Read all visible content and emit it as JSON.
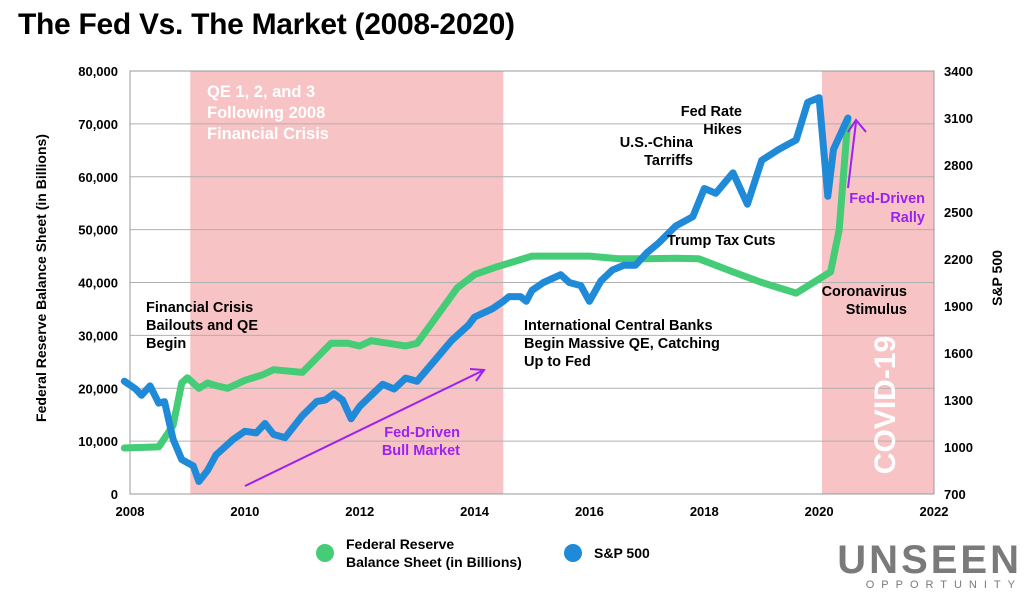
{
  "title": "The Fed Vs. The Market (2008-2020)",
  "colors": {
    "fed_line": "#44cc77",
    "sp_line": "#1f8ad8",
    "shade": "#f7c3c4",
    "arrow": "#9b22f0",
    "qe_text": "#ffffff",
    "grid": "#b0b0b0"
  },
  "chart_data": {
    "type": "line",
    "title": "The Fed Vs. The Market (2008-2020)",
    "xlim": [
      2008,
      2022
    ],
    "x_ticks": [
      "2008",
      "2010",
      "2012",
      "2014",
      "2016",
      "2018",
      "2020",
      "2022"
    ],
    "y_left": {
      "label": "Federal Reserve Balance Sheet (in Billions)",
      "range": [
        0,
        80000
      ],
      "ticks": [
        "0",
        "10,000",
        "20,000",
        "30,000",
        "40,000",
        "50,000",
        "60,000",
        "70,000",
        "80,000"
      ]
    },
    "y_right": {
      "label": "S&P 500",
      "range": [
        700,
        3400
      ],
      "ticks": [
        "700",
        "1000",
        "1300",
        "1600",
        "1900",
        "2200",
        "2500",
        "2800",
        "3100",
        "3400"
      ]
    },
    "grid": true,
    "legend_position": "bottom",
    "shaded_regions": [
      {
        "x0": 2009.05,
        "x1": 2014.5,
        "label": "QE 1, 2, and 3 Following 2008 Financial Crisis"
      },
      {
        "x0": 2020.05,
        "x1": 2022.0,
        "label": "COVID-19"
      }
    ],
    "series": [
      {
        "name": "Federal Reserve Balance Sheet (in Billions)",
        "axis": "left",
        "x": [
          2007.9,
          2008.5,
          2008.75,
          2008.9,
          2009.0,
          2009.2,
          2009.35,
          2009.5,
          2009.7,
          2010.0,
          2010.3,
          2010.5,
          2011.0,
          2011.5,
          2011.8,
          2012.0,
          2012.2,
          2012.5,
          2012.8,
          2013.0,
          2013.3,
          2013.7,
          2014.0,
          2014.4,
          2015.0,
          2015.5,
          2016.0,
          2016.5,
          2017.0,
          2017.5,
          2017.9,
          2018.5,
          2019.0,
          2019.6,
          2019.9,
          2020.2,
          2020.35,
          2020.5
        ],
        "values": [
          8700,
          8900,
          13000,
          21000,
          22000,
          20000,
          21000,
          20500,
          20000,
          21500,
          22500,
          23500,
          23000,
          28500,
          28500,
          28000,
          29000,
          28500,
          28000,
          28500,
          33000,
          39000,
          41500,
          43000,
          45000,
          45000,
          45000,
          44500,
          44500,
          44600,
          44500,
          42000,
          40000,
          38000,
          40000,
          42000,
          50000,
          71000
        ]
      },
      {
        "name": "S&P 500",
        "axis": "right",
        "x": [
          2007.9,
          2008.1,
          2008.2,
          2008.35,
          2008.5,
          2008.6,
          2008.75,
          2008.9,
          2009.0,
          2009.1,
          2009.2,
          2009.35,
          2009.5,
          2009.65,
          2009.8,
          2010.0,
          2010.2,
          2010.35,
          2010.5,
          2010.7,
          2011.0,
          2011.25,
          2011.4,
          2011.55,
          2011.7,
          2011.85,
          2012.0,
          2012.2,
          2012.4,
          2012.6,
          2012.8,
          2013.0,
          2013.3,
          2013.6,
          2013.9,
          2014.0,
          2014.3,
          2014.5,
          2014.6,
          2014.8,
          2014.9,
          2015.0,
          2015.2,
          2015.5,
          2015.65,
          2015.85,
          2016.0,
          2016.2,
          2016.4,
          2016.6,
          2016.8,
          2017.0,
          2017.2,
          2017.5,
          2017.8,
          2018.0,
          2018.2,
          2018.5,
          2018.75,
          2019.0,
          2019.3,
          2019.5,
          2019.6,
          2019.8,
          2020.0,
          2020.15,
          2020.25,
          2020.5
        ],
        "values": [
          1420,
          1370,
          1330,
          1390,
          1280,
          1290,
          1050,
          920,
          900,
          880,
          780,
          850,
          950,
          1000,
          1050,
          1100,
          1090,
          1150,
          1080,
          1060,
          1200,
          1290,
          1300,
          1340,
          1300,
          1180,
          1260,
          1330,
          1400,
          1370,
          1440,
          1420,
          1550,
          1680,
          1780,
          1830,
          1880,
          1930,
          1960,
          1960,
          1930,
          2000,
          2050,
          2100,
          2050,
          2030,
          1930,
          2060,
          2130,
          2160,
          2160,
          2240,
          2300,
          2410,
          2470,
          2650,
          2620,
          2750,
          2550,
          2830,
          2900,
          2940,
          2960,
          3200,
          3230,
          2600,
          2900,
          3100
        ]
      }
    ],
    "annotations": [
      "Financial Crisis Bailouts and QE Begin",
      "Fed-Driven Bull Market",
      "International Central Banks Begin Massive QE, Catching Up to Fed",
      "Trump Tax Cuts",
      "U.S.-China Tarriffs",
      "Fed Rate Hikes",
      "Coronavirus Stimulus",
      "Fed-Driven Rally",
      "COVID-19"
    ]
  },
  "annotations": {
    "financial_crisis": [
      "Financial Crisis",
      "Bailouts and QE",
      "Begin"
    ],
    "qe_label": [
      "QE 1, 2, and 3",
      "Following 2008",
      "Financial Crisis"
    ],
    "bull_market": [
      "Fed-Driven",
      "Bull Market"
    ],
    "international": [
      "International Central Banks",
      "Begin Massive QE, Catching",
      "Up to Fed"
    ],
    "trump": "Trump Tax Cuts",
    "tariffs": [
      "U.S.-China",
      "Tarriffs"
    ],
    "rate_hikes": [
      "Fed Rate",
      "Hikes"
    ],
    "coronavirus": [
      "Coronavirus",
      "Stimulus"
    ],
    "fed_rally": [
      "Fed-Driven",
      "Rally"
    ],
    "covid": "COVID-19"
  },
  "legend": {
    "fed_label": [
      "Federal Reserve",
      "Balance Sheet (in Billions)"
    ],
    "sp_label": "S&P 500"
  },
  "logo": {
    "brand": "UNSEEN",
    "tagline": "OPPORTUNITY"
  }
}
